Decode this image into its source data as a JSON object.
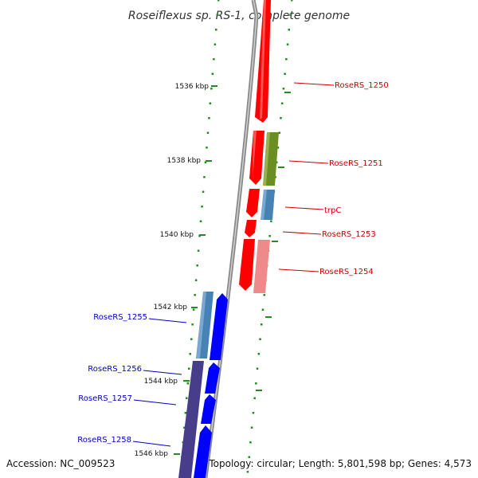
{
  "title": "Roseiflexus sp. RS-1, complete genome",
  "accession": "Accession: NC_009523",
  "summary": "Topology: circular; Length: 5,801,598 bp; Genes: 4,573",
  "colors": {
    "forward_gene": "#ff0000",
    "forward_gene_light": "#ef8a8a",
    "reverse_gene": "#0000ff",
    "reverse_cds_blue": "#4682b4",
    "reverse_cds_navy": "#483d8b",
    "cds_olive": "#6b8e23",
    "backbone": "#888888",
    "tick": "#228b22",
    "forward_label": "#cc0000",
    "reverse_label": "#0000cc"
  },
  "ticks": [
    {
      "label": "1536 kbp"
    },
    {
      "label": "1538 kbp"
    },
    {
      "label": "1540 kbp"
    },
    {
      "label": "1542 kbp"
    },
    {
      "label": "1544 kbp"
    },
    {
      "label": "1546 kbp"
    }
  ],
  "forward_genes": [
    {
      "label": "RoseRS_1250"
    },
    {
      "label": "RoseRS_1251"
    },
    {
      "label": "trpC"
    },
    {
      "label": "RoseRS_1253"
    },
    {
      "label": "RoseRS_1254"
    }
  ],
  "reverse_genes": [
    {
      "label": "RoseRS_1255"
    },
    {
      "label": "RoseRS_1256"
    },
    {
      "label": "RoseRS_1257"
    },
    {
      "label": "RoseRS_1258"
    }
  ]
}
